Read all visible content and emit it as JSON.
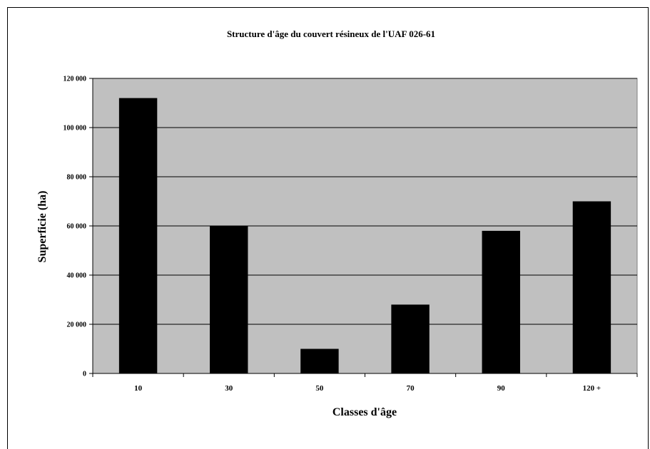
{
  "chart_data": {
    "type": "bar",
    "title": "Structure d'âge du couvert résineux de l'UAF 026-61",
    "xlabel": "Classes d'âge",
    "ylabel": "Superficie (ha)",
    "categories": [
      "10",
      "30",
      "50",
      "70",
      "90",
      "120 +"
    ],
    "values": [
      112000,
      60000,
      10000,
      28000,
      58000,
      70000
    ],
    "ylim": [
      0,
      120000
    ],
    "yticks": [
      0,
      20000,
      40000,
      60000,
      80000,
      100000,
      120000
    ],
    "ytick_labels": [
      "0",
      "20 000",
      "40 000",
      "60 000",
      "80 000",
      "100 000",
      "120 000"
    ],
    "grid": true,
    "legend": "none",
    "colors": {
      "bar": "#000000",
      "plot_bg": "#c0c0c0",
      "grid": "#000000"
    }
  }
}
